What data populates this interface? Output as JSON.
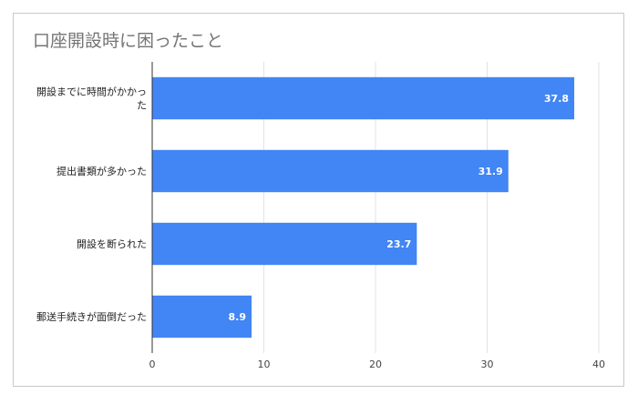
{
  "chart_data": {
    "type": "bar",
    "orientation": "horizontal",
    "title": "口座開設時に困ったこと",
    "categories": [
      [
        "開設までに時間がかかっ",
        "た"
      ],
      [
        "提出書類が多かった"
      ],
      [
        "開設を断られた"
      ],
      [
        "郵送手続きが面倒だった"
      ]
    ],
    "values": [
      37.8,
      31.9,
      23.7,
      8.9
    ],
    "value_labels": [
      "37.8",
      "31.9",
      "23.7",
      "8.9"
    ],
    "xlim": [
      0,
      40
    ],
    "ticks": [
      0,
      10,
      20,
      30,
      40
    ],
    "tick_labels": [
      "0",
      "10",
      "20",
      "30",
      "40"
    ],
    "bar_color": "#4285f4",
    "grid": true
  }
}
